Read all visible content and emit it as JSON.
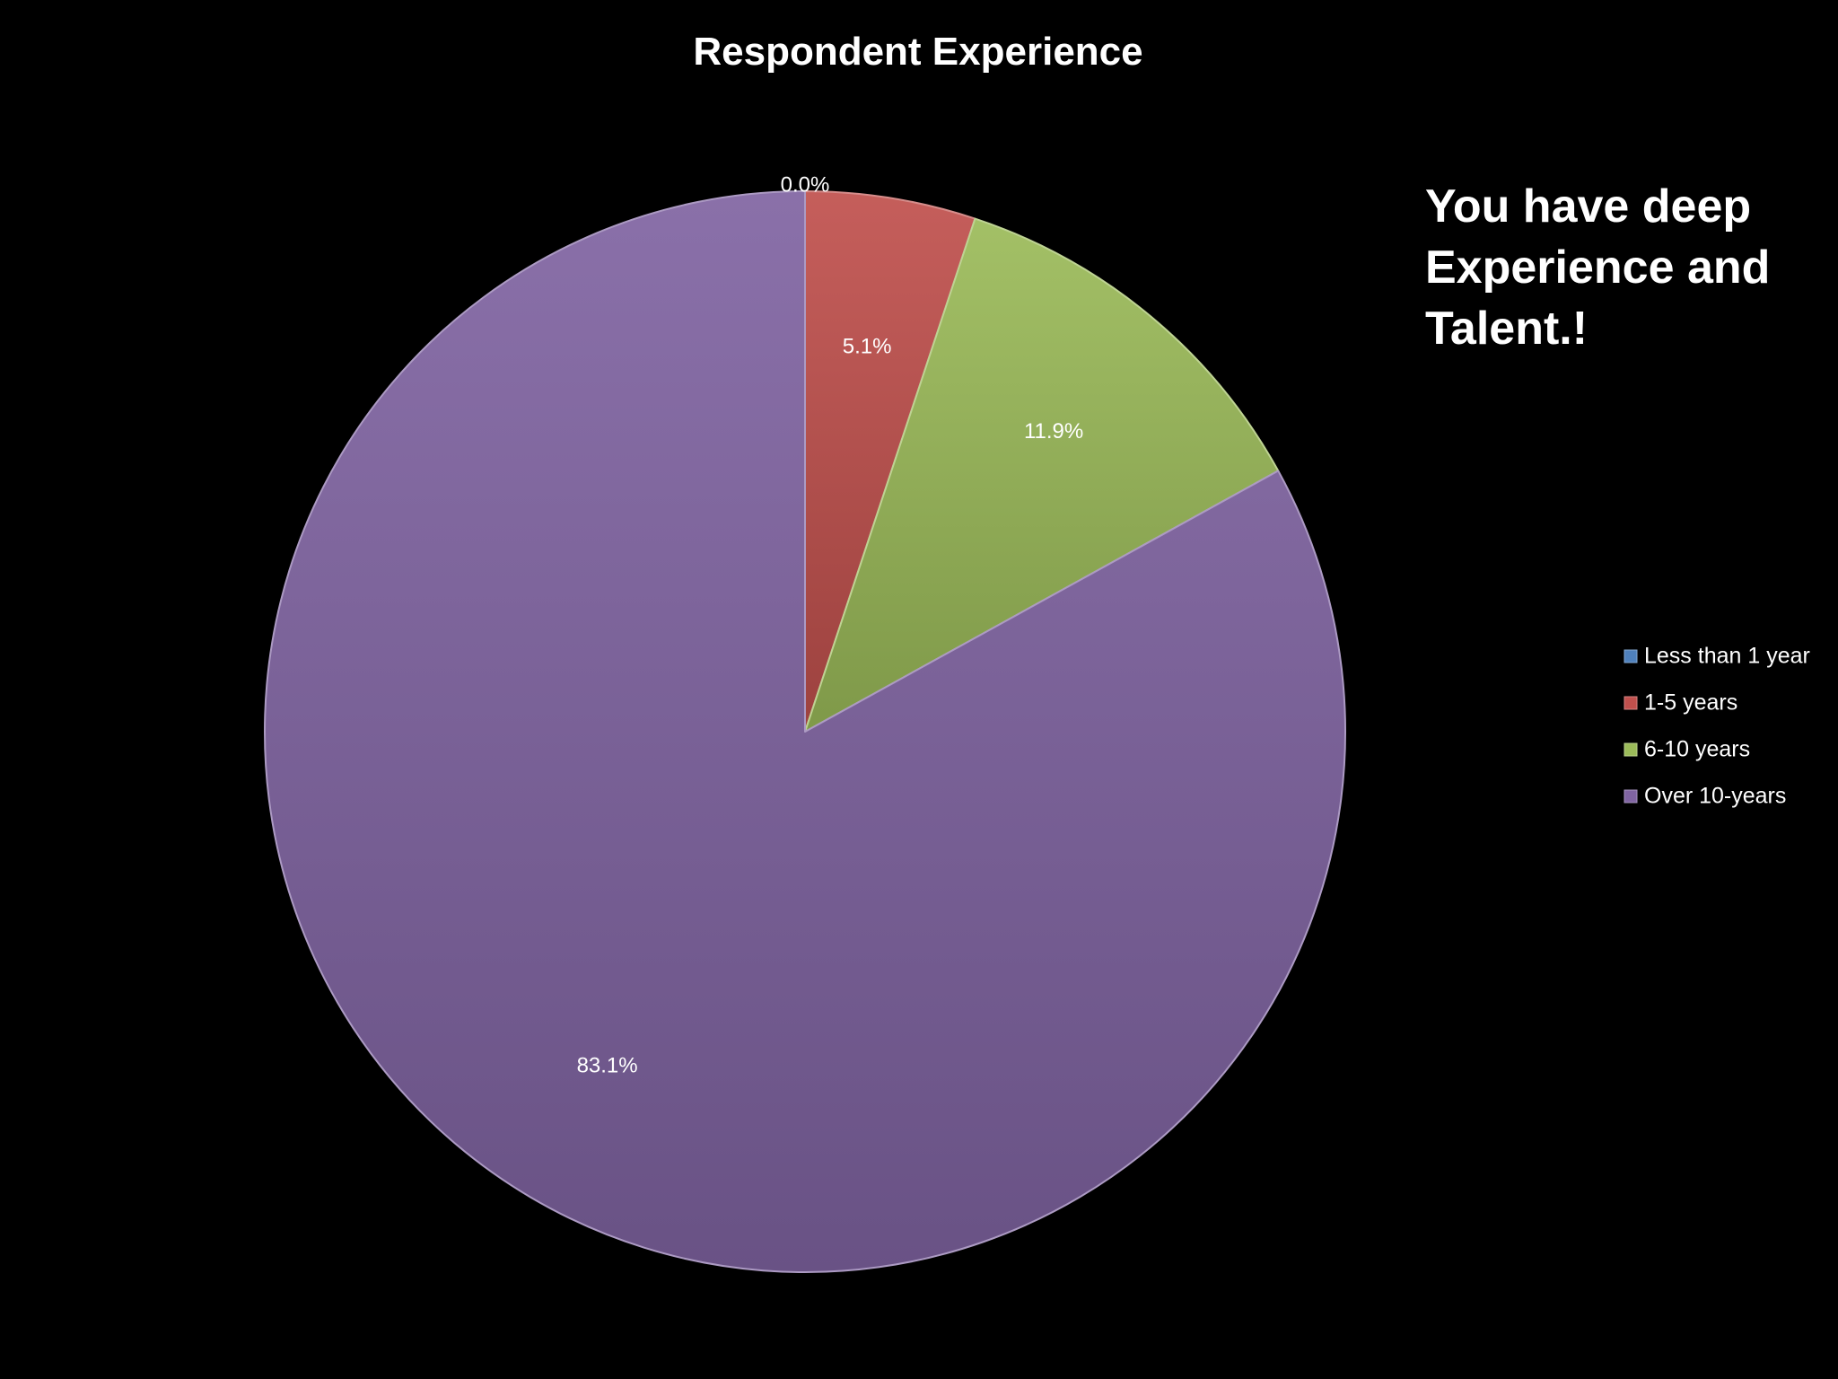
{
  "chart_data": {
    "type": "pie",
    "title": "Respondent Experience",
    "categories": [
      "Less than 1 year",
      "1-5 years",
      "6-10 years",
      "Over 10-years"
    ],
    "values": [
      0.0,
      5.1,
      11.9,
      83.1
    ],
    "value_labels": [
      "0.0%",
      "5.1%",
      "11.9%",
      "83.1%"
    ],
    "colors": [
      "#4f81bd",
      "#c0504d",
      "#9bbb59",
      "#8064a2"
    ],
    "legend_position": "right",
    "start_angle": "12 o'clock, clockwise"
  },
  "callout": {
    "lines": [
      "You have deep",
      "Experience and",
      "Talent.!"
    ]
  }
}
